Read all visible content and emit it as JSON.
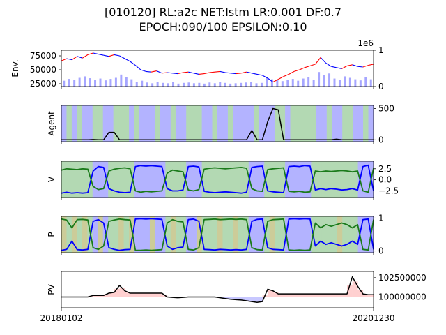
{
  "title_line1": "[010120] RL:a2c NET:lstm LR:0.001 DF:0.7",
  "title_line2": "EPOCH:090/100 EPSILON:0.10",
  "colors": {
    "price_up": "#ff0000",
    "price_down": "#0000ff",
    "volume": "#8080ff",
    "buy_region": "#b3d9b3",
    "sell_region": "#b3b3ff",
    "hold_region": "#cccc99",
    "agent_line": "#000000",
    "v_buy": "#0000ff",
    "v_sell": "#1a7a1a",
    "pv_line": "#000000",
    "pv_gain_fill": "#ffd0d0",
    "pv_loss_fill": "#c8c8ff"
  },
  "chart_data": [
    {
      "id": "env",
      "type": "line",
      "ylabel": "Env.",
      "left_ticks": [
        "75000",
        "50000",
        "25000"
      ],
      "left_tick_values": [
        75000,
        50000,
        25000
      ],
      "ylim": [
        20000,
        85000
      ],
      "right_ticks": [
        "1",
        "0"
      ],
      "right_tick_values": [
        1000000,
        0
      ],
      "right_offset_label": "1e6",
      "y2lim": [
        0,
        1000000
      ],
      "series": [
        {
          "values": [
            66000,
            70000,
            68000,
            74000,
            71000,
            77000,
            80000,
            78000,
            76000,
            74000,
            77000,
            75000,
            70000,
            65000,
            58000,
            50000,
            47000,
            46000,
            48000,
            44000,
            45000,
            44000,
            43000,
            45000,
            46000,
            44000,
            42000,
            43000,
            45000,
            46000,
            47000,
            45000,
            44000,
            43000,
            44000,
            46000,
            44000,
            42000,
            40000,
            35000,
            28000,
            33000,
            38000,
            42000,
            47000,
            50000,
            54000,
            57000,
            60000,
            72000,
            62000,
            56000,
            54000,
            52000,
            57000,
            59000,
            56000,
            55000,
            58000,
            60000
          ]
        },
        {
          "name": "volume",
          "values": [
            160000,
            210000,
            180000,
            240000,
            280000,
            230000,
            190000,
            220000,
            170000,
            210000,
            240000,
            330000,
            260000,
            200000,
            120000,
            160000,
            110000,
            90000,
            130000,
            100000,
            90000,
            120000,
            80000,
            100000,
            110000,
            90000,
            100000,
            80000,
            110000,
            90000,
            120000,
            100000,
            80000,
            90000,
            100000,
            110000,
            120000,
            90000,
            100000,
            240000,
            200000,
            180000,
            150000,
            190000,
            210000,
            160000,
            220000,
            250000,
            180000,
            400000,
            320000,
            360000,
            220000,
            180000,
            280000,
            240000,
            200000,
            170000,
            260000,
            200000
          ]
        }
      ]
    },
    {
      "id": "agent",
      "type": "line",
      "ylabel": "Agent",
      "right_ticks": [
        "500",
        "0"
      ],
      "right_tick_values": [
        500,
        0
      ],
      "ylim": [
        -30,
        550
      ],
      "regions": [
        "sell",
        "buy",
        "sell",
        "buy",
        "sell",
        "sell",
        "buy",
        "buy",
        "sell",
        "sell",
        "buy",
        "buy",
        "buy",
        "sell",
        "buy",
        "sell",
        "sell",
        "sell",
        "buy",
        "sell",
        "sell",
        "buy",
        "sell",
        "sell",
        "buy",
        "buy",
        "buy",
        "sell",
        "sell",
        "buy",
        "sell",
        "sell",
        "buy",
        "sell",
        "sell",
        "sell",
        "sell",
        "buy",
        "sell",
        "sell",
        "sell",
        "buy",
        "buy",
        "sell",
        "buy",
        "buy",
        "buy",
        "buy",
        "buy",
        "sell",
        "sell",
        "buy",
        "sell",
        "sell",
        "buy",
        "buy",
        "sell",
        "sell",
        "buy",
        "sell"
      ],
      "series": [
        {
          "values": [
            0,
            0,
            0,
            0,
            0,
            0,
            5,
            0,
            0,
            120,
            120,
            0,
            0,
            0,
            0,
            0,
            0,
            0,
            0,
            0,
            0,
            0,
            0,
            0,
            0,
            0,
            0,
            0,
            0,
            0,
            0,
            0,
            0,
            0,
            0,
            0,
            150,
            0,
            0,
            290,
            500,
            480,
            0,
            0,
            0,
            0,
            0,
            0,
            0,
            0,
            0,
            0,
            10,
            0,
            0,
            0,
            0,
            0,
            0,
            0
          ]
        }
      ]
    },
    {
      "id": "v",
      "type": "line",
      "ylabel": "V",
      "right_ticks": [
        "2.5",
        "0.0",
        "−2.5"
      ],
      "right_tick_values": [
        2.5,
        0,
        -2.5
      ],
      "ylim": [
        -4,
        4.2
      ],
      "regions": [
        "buy",
        "buy",
        "buy",
        "buy",
        "buy",
        "buy",
        "sell",
        "sell",
        "sell",
        "buy",
        "buy",
        "buy",
        "buy",
        "buy",
        "sell",
        "sell",
        "sell",
        "sell",
        "sell",
        "sell",
        "buy",
        "buy",
        "buy",
        "buy",
        "sell",
        "sell",
        "sell",
        "buy",
        "buy",
        "buy",
        "buy",
        "buy",
        "buy",
        "buy",
        "buy",
        "buy",
        "sell",
        "sell",
        "sell",
        "buy",
        "buy",
        "buy",
        "buy",
        "sell",
        "sell",
        "sell",
        "sell",
        "sell",
        "buy",
        "buy",
        "buy",
        "buy",
        "buy",
        "buy",
        "buy",
        "buy",
        "buy",
        "sell",
        "sell",
        "sell"
      ],
      "series": [
        {
          "name": "buy",
          "values": [
            -3,
            -2.8,
            -3,
            -2.9,
            -3,
            -2.9,
            2,
            3,
            2.8,
            -2,
            -2.5,
            -2.8,
            -2.9,
            -2.8,
            3,
            3.2,
            3.1,
            3.2,
            3.1,
            3,
            -2,
            -2.5,
            -2.5,
            -2.3,
            3,
            3.1,
            2.9,
            -2.6,
            -2.8,
            -2.9,
            -2.8,
            -2.7,
            -2.8,
            -2.9,
            -3,
            -2.8,
            2.8,
            3,
            3.1,
            -2.5,
            -2.7,
            -2.8,
            -2.9,
            3,
            3.1,
            3,
            3.2,
            3.1,
            -2.3,
            -2,
            -2.2,
            -2,
            -2.1,
            -2.3,
            -2.2,
            -2,
            -2.3,
            3,
            3.3,
            -2.5
          ]
        },
        {
          "name": "sell",
          "values": [
            2.2,
            2.5,
            2.4,
            2.3,
            2.5,
            2.4,
            -1.5,
            -2.2,
            -2,
            2,
            2.4,
            2.6,
            2.7,
            2.5,
            -2.5,
            -2.8,
            -2.6,
            -2.7,
            -2.6,
            -2.5,
            1.5,
            2.2,
            2,
            1.8,
            -2.3,
            -2.5,
            -2.2,
            2.4,
            2.6,
            2.7,
            2.6,
            2.5,
            2.6,
            2.7,
            2.8,
            2.6,
            -2,
            -2.5,
            -2.6,
            2.3,
            2.5,
            2.6,
            2.7,
            -2.6,
            -2.7,
            -2.6,
            -2.8,
            -2.7,
            2,
            1.8,
            2,
            1.9,
            2,
            2.1,
            2,
            1.8,
            2,
            -2.5,
            -2.8,
            2.6
          ]
        }
      ]
    },
    {
      "id": "p",
      "type": "line",
      "ylabel": "P",
      "right_ticks": [
        "1",
        "0"
      ],
      "right_tick_values": [
        1,
        0
      ],
      "ylim": [
        -0.05,
        1.05
      ],
      "regions": [
        "hold",
        "buy",
        "hold",
        "buy",
        "hold",
        "buy",
        "sell",
        "hold",
        "sell",
        "buy",
        "buy",
        "hold",
        "buy",
        "hold",
        "sell",
        "sell",
        "sell",
        "hold",
        "sell",
        "sell",
        "buy",
        "hold",
        "buy",
        "buy",
        "sell",
        "sell",
        "hold",
        "buy",
        "buy",
        "buy",
        "hold",
        "buy",
        "buy",
        "hold",
        "buy",
        "buy",
        "sell",
        "sell",
        "sell",
        "buy",
        "hold",
        "buy",
        "buy",
        "sell",
        "sell",
        "sell",
        "sell",
        "sell",
        "buy",
        "buy",
        "buy",
        "buy",
        "buy",
        "hold",
        "buy",
        "buy",
        "buy",
        "sell",
        "sell",
        "sell"
      ],
      "series": [
        {
          "name": "buy",
          "values": [
            0.02,
            0.05,
            0.3,
            0.04,
            0.03,
            0.05,
            0.9,
            0.95,
            0.85,
            0.1,
            0.05,
            0.02,
            0.04,
            0.05,
            0.97,
            0.98,
            0.97,
            0.98,
            0.97,
            0.96,
            0.15,
            0.05,
            0.1,
            0.12,
            0.95,
            0.97,
            0.9,
            0.05,
            0.04,
            0.03,
            0.05,
            0.04,
            0.03,
            0.04,
            0.03,
            0.05,
            0.9,
            0.96,
            0.97,
            0.1,
            0.05,
            0.04,
            0.03,
            0.97,
            0.98,
            0.97,
            0.98,
            0.97,
            0.15,
            0.3,
            0.2,
            0.25,
            0.2,
            0.15,
            0.2,
            0.3,
            0.2,
            0.95,
            0.97,
            0.05
          ]
        },
        {
          "name": "sell",
          "values": [
            0.97,
            0.94,
            0.7,
            0.95,
            0.96,
            0.94,
            0.1,
            0.05,
            0.15,
            0.9,
            0.94,
            0.97,
            0.95,
            0.94,
            0.02,
            0.02,
            0.03,
            0.02,
            0.03,
            0.04,
            0.85,
            0.95,
            0.9,
            0.88,
            0.05,
            0.03,
            0.1,
            0.95,
            0.96,
            0.97,
            0.95,
            0.96,
            0.97,
            0.96,
            0.97,
            0.95,
            0.1,
            0.04,
            0.03,
            0.9,
            0.95,
            0.96,
            0.97,
            0.03,
            0.02,
            0.03,
            0.02,
            0.03,
            0.85,
            0.7,
            0.8,
            0.75,
            0.8,
            0.85,
            0.8,
            0.7,
            0.8,
            0.05,
            0.03,
            0.95
          ]
        }
      ]
    },
    {
      "id": "pv",
      "type": "line",
      "ylabel": "PV",
      "right_ticks": [
        "102500000",
        "100000000"
      ],
      "right_tick_values": [
        102500000,
        100000000
      ],
      "ylim": [
        98600000,
        103300000
      ],
      "baseline": 100000000,
      "x_tick_labels": [
        "20180102",
        "20201230"
      ],
      "series": [
        {
          "values": [
            100000000,
            100000000,
            100000000,
            100000000,
            100000000,
            100000000,
            100200000,
            100200000,
            100200000,
            100500000,
            100600000,
            101500000,
            100800000,
            100500000,
            100500000,
            100500000,
            100500000,
            100500000,
            100500000,
            100500000,
            100000000,
            99950000,
            99900000,
            99950000,
            100000000,
            100000000,
            100000000,
            100000000,
            100000000,
            100000000,
            99900000,
            99800000,
            99700000,
            99650000,
            99600000,
            99500000,
            99400000,
            99300000,
            99400000,
            101000000,
            100800000,
            100400000,
            100400000,
            100400000,
            100400000,
            100400000,
            100400000,
            100400000,
            100400000,
            100400000,
            100400000,
            100400000,
            100400000,
            100400000,
            100400000,
            102600000,
            101400000,
            100400000,
            100300000,
            100300000
          ]
        }
      ]
    }
  ]
}
